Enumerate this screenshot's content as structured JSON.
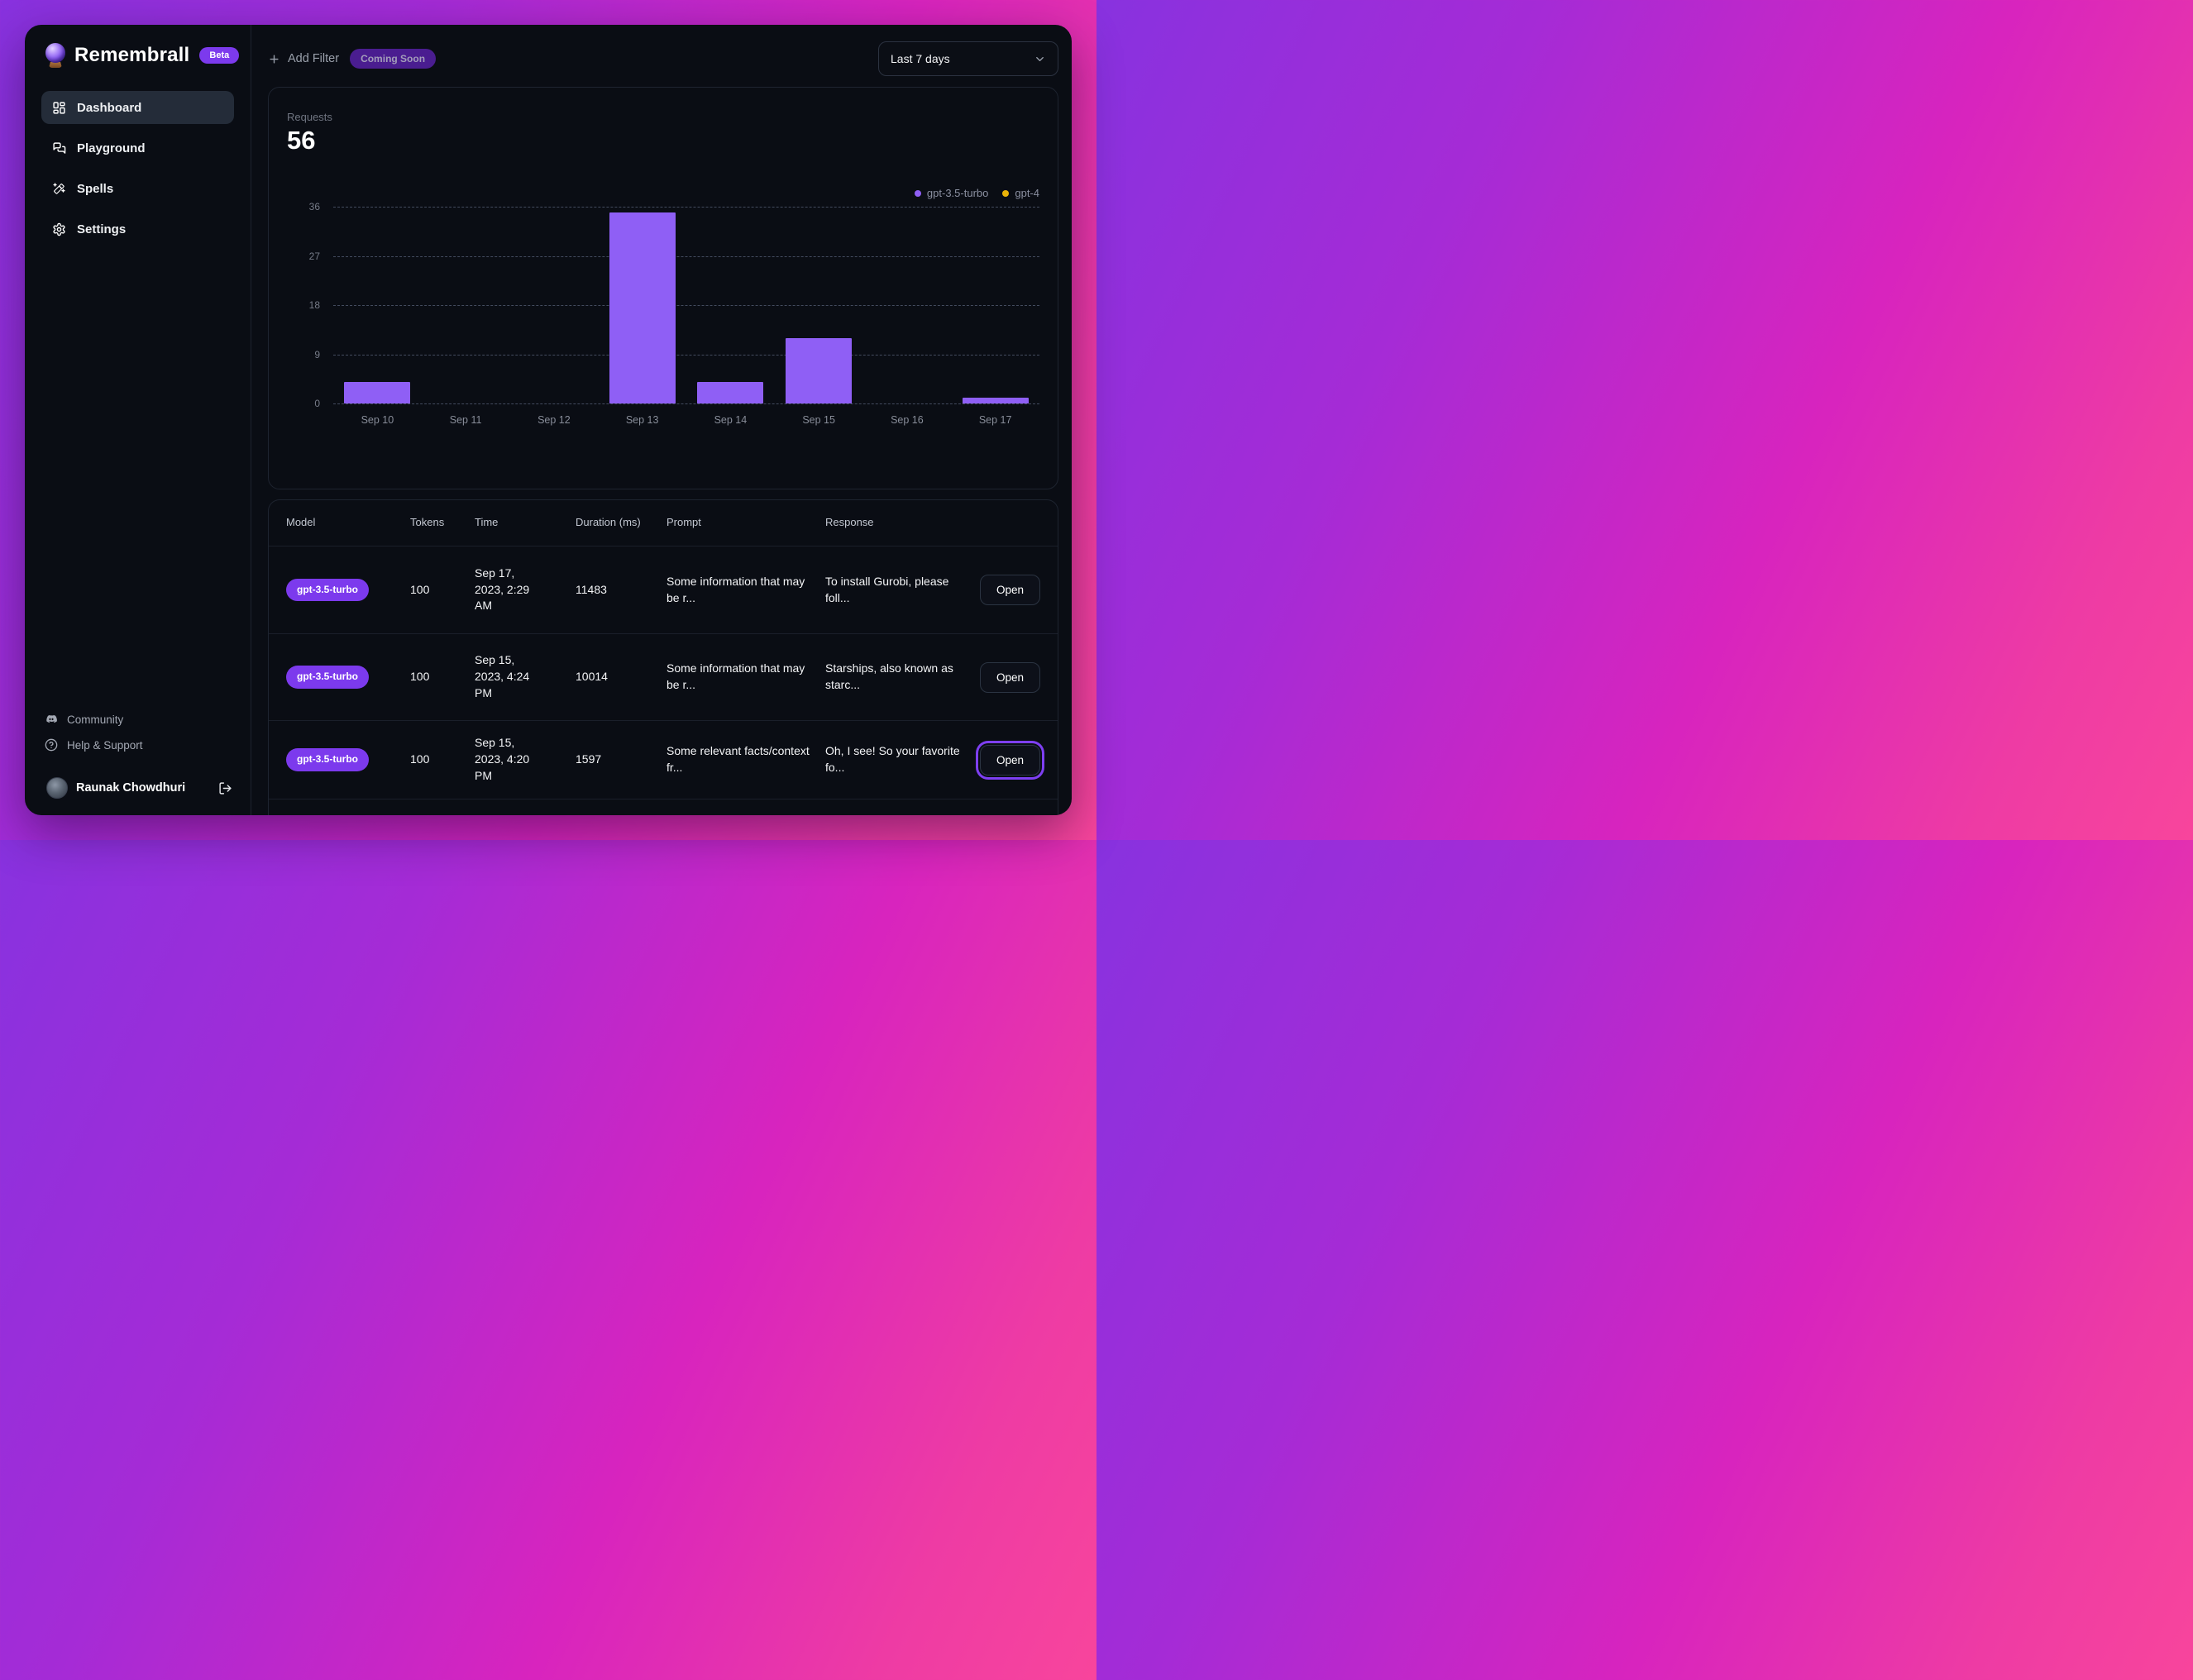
{
  "app": {
    "name": "Remembrall",
    "badge": "Beta"
  },
  "sidebar": {
    "items": [
      {
        "label": "Dashboard",
        "active": true
      },
      {
        "label": "Playground",
        "active": false
      },
      {
        "label": "Spells",
        "active": false
      },
      {
        "label": "Settings",
        "active": false
      }
    ],
    "community_label": "Community",
    "help_label": "Help & Support",
    "user_name": "Raunak Chowdhuri"
  },
  "topbar": {
    "add_filter_label": "Add Filter",
    "coming_soon_label": "Coming Soon",
    "date_range": "Last 7 days"
  },
  "chart_data": {
    "type": "bar",
    "title": "Requests",
    "total": "56",
    "categories": [
      "Sep 10",
      "Sep 11",
      "Sep 12",
      "Sep 13",
      "Sep 14",
      "Sep 15",
      "Sep 16",
      "Sep 17"
    ],
    "series": [
      {
        "name": "gpt-3.5-turbo",
        "color": "#8f5ff5",
        "values": [
          4,
          0,
          0,
          35,
          4,
          12,
          0,
          1
        ]
      },
      {
        "name": "gpt-4",
        "color": "#eab308",
        "values": [
          0,
          0,
          0,
          0,
          0,
          0,
          0,
          0
        ]
      }
    ],
    "ylim": [
      0,
      36
    ],
    "yticks": [
      36,
      27,
      18,
      9,
      0
    ],
    "grid": "horizontal-dashed",
    "legend_position": "top-right"
  },
  "table": {
    "headers": [
      "Model",
      "Tokens",
      "Time",
      "Duration (ms)",
      "Prompt",
      "Response"
    ],
    "open_label": "Open",
    "rows": [
      {
        "model": "gpt-3.5-turbo",
        "tokens": "100",
        "time": "Sep 17, 2023, 2:29 AM",
        "duration": "11483",
        "prompt": "Some information that may be r...",
        "response": "To install Gurobi, please foll...",
        "focused": false
      },
      {
        "model": "gpt-3.5-turbo",
        "tokens": "100",
        "time": "Sep 15, 2023, 4:24 PM",
        "duration": "10014",
        "prompt": "Some information that may be r...",
        "response": "Starships, also known as starc...",
        "focused": false
      },
      {
        "model": "gpt-3.5-turbo",
        "tokens": "100",
        "time": "Sep 15, 2023, 4:20 PM",
        "duration": "1597",
        "prompt": "Some relevant facts/context fr...",
        "response": "Oh, I see! So your favorite fo...",
        "focused": true
      }
    ]
  },
  "colors": {
    "accent": "#7c3aed",
    "bar": "#8f5ff5",
    "gpt4_dot": "#eab308",
    "background_gradient": [
      "#8832df",
      "#ee3ba4"
    ]
  }
}
